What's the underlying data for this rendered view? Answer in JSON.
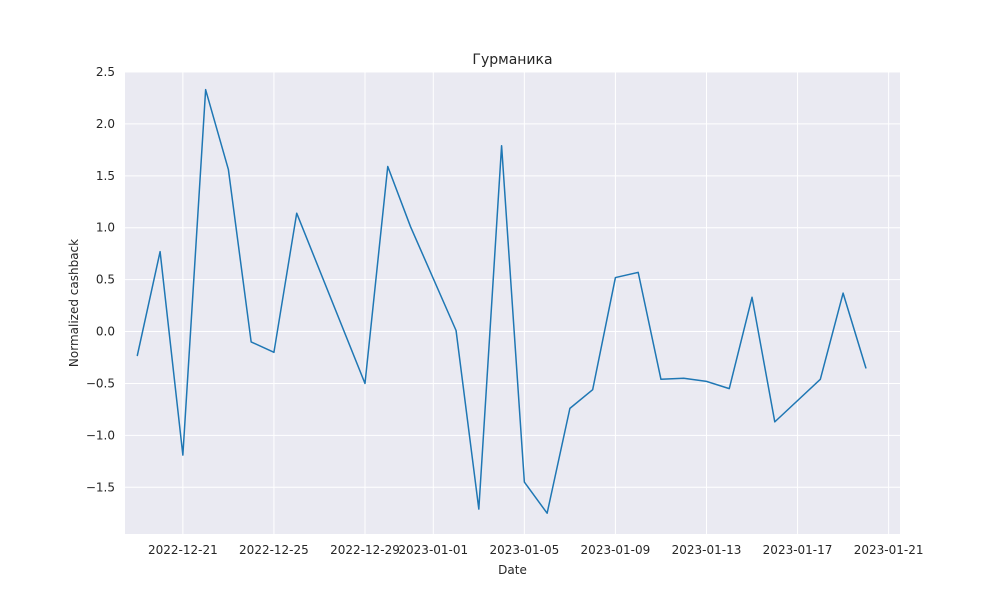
{
  "chart_data": {
    "type": "line",
    "title": "Гурманика",
    "xlabel": "Date",
    "ylabel": "Normalized cashback",
    "x": [
      "2022-12-19",
      "2022-12-20",
      "2022-12-21",
      "2022-12-22",
      "2022-12-23",
      "2022-12-24",
      "2022-12-25",
      "2022-12-26",
      "2022-12-29",
      "2022-12-30",
      "2022-12-31",
      "2023-01-02",
      "2023-01-03",
      "2023-01-04",
      "2023-01-05",
      "2023-01-06",
      "2023-01-07",
      "2023-01-08",
      "2023-01-09",
      "2023-01-10",
      "2023-01-11",
      "2023-01-12",
      "2023-01-13",
      "2023-01-14",
      "2023-01-15",
      "2023-01-16",
      "2023-01-18",
      "2023-01-19",
      "2023-01-20"
    ],
    "series": [
      {
        "color": "#1f77b4",
        "values": [
          -0.23,
          0.77,
          -1.19,
          2.33,
          1.56,
          -0.1,
          -0.2,
          1.14,
          -0.5,
          1.59,
          1.01,
          0.01,
          -1.71,
          1.79,
          -1.45,
          -1.75,
          -0.74,
          -0.56,
          0.52,
          0.57,
          -0.46,
          -0.45,
          -0.48,
          -0.55,
          0.33,
          -0.87,
          -0.46,
          0.37,
          -0.35
        ]
      }
    ],
    "xlim": [
      "2022-12-18T11:00",
      "2023-01-21T12:00"
    ],
    "ylim": [
      -1.95,
      2.5
    ],
    "x_ticks": [
      "2022-12-21",
      "2022-12-25",
      "2022-12-29",
      "2023-01-01",
      "2023-01-05",
      "2023-01-09",
      "2023-01-13",
      "2023-01-17",
      "2023-01-21"
    ],
    "y_ticks": [
      -1.5,
      -1.0,
      -0.5,
      0.0,
      0.5,
      1.0,
      1.5,
      2.0,
      2.5
    ],
    "y_tick_labels": [
      "−1.5",
      "−1.0",
      "−0.5",
      "0.0",
      "0.5",
      "1.0",
      "1.5",
      "2.0",
      "2.5"
    ],
    "grid": true,
    "style": "seaborn-darkgrid",
    "plot_background": "#eaeaf2"
  }
}
